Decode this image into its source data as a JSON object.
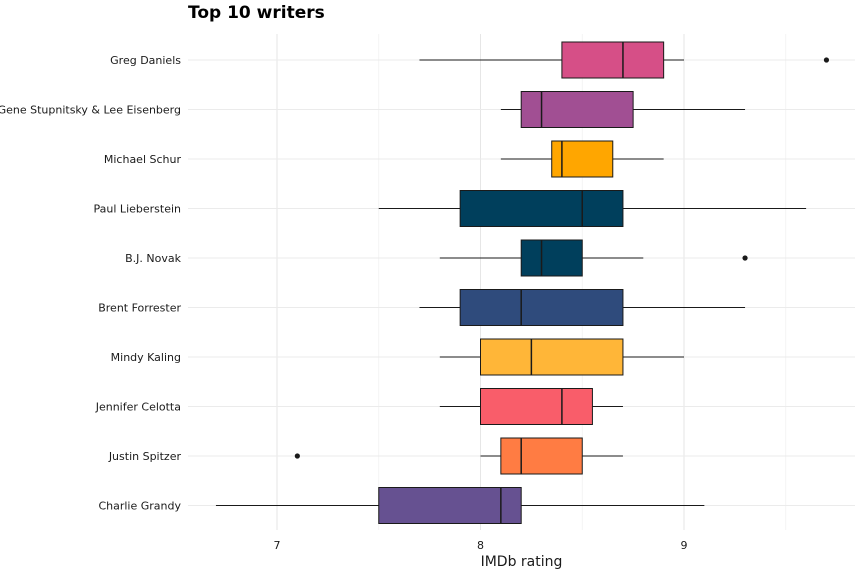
{
  "chart_data": {
    "type": "boxplot",
    "title": "Top 10 writers",
    "xlabel": "IMDb rating",
    "ylabel": "",
    "xlim": [
      6.55,
      9.85
    ],
    "x_ticks": [
      "7",
      "8",
      "9"
    ],
    "x_tick_values": [
      7,
      8,
      9
    ],
    "orientation": "horizontal",
    "grid": true,
    "legend": "none",
    "categories": [
      "Greg Daniels",
      "Gene Stupnitsky & Lee Eisenberg",
      "Michael Schur",
      "Paul Lieberstein",
      "B.J. Novak",
      "Brent Forrester",
      "Mindy Kaling",
      "Jennifer Celotta",
      "Justin Spitzer",
      "Charlie Grandy"
    ],
    "boxes": [
      {
        "label": "Greg Daniels",
        "whisker_low": 7.7,
        "q1": 8.4,
        "median": 8.7,
        "q3": 8.9,
        "whisker_high": 9.0,
        "outliers": [
          9.7
        ],
        "color": "#D64F87"
      },
      {
        "label": "Gene Stupnitsky & Lee Eisenberg",
        "whisker_low": 8.1,
        "q1": 8.2,
        "median": 8.3,
        "q3": 8.75,
        "whisker_high": 9.3,
        "outliers": [],
        "color": "#A14F93"
      },
      {
        "label": "Michael Schur",
        "whisker_low": 8.1,
        "q1": 8.35,
        "median": 8.4,
        "q3": 8.65,
        "whisker_high": 8.9,
        "outliers": [],
        "color": "#FFA600"
      },
      {
        "label": "Paul Lieberstein",
        "whisker_low": 7.5,
        "q1": 7.9,
        "median": 8.5,
        "q3": 8.7,
        "whisker_high": 9.6,
        "outliers": [],
        "color": "#003F5C"
      },
      {
        "label": "B.J. Novak",
        "whisker_low": 7.8,
        "q1": 8.2,
        "median": 8.3,
        "q3": 8.5,
        "whisker_high": 8.8,
        "outliers": [
          9.3
        ],
        "color": "#003F5C"
      },
      {
        "label": "Brent Forrester",
        "whisker_low": 7.7,
        "q1": 7.9,
        "median": 8.2,
        "q3": 8.7,
        "whisker_high": 9.3,
        "outliers": [],
        "color": "#2F4B7C"
      },
      {
        "label": "Mindy Kaling",
        "whisker_low": 7.8,
        "q1": 8.0,
        "median": 8.25,
        "q3": 8.7,
        "whisker_high": 9.0,
        "outliers": [],
        "color": "#FFB638"
      },
      {
        "label": "Jennifer Celotta",
        "whisker_low": 7.8,
        "q1": 8.0,
        "median": 8.4,
        "q3": 8.55,
        "whisker_high": 8.7,
        "outliers": [],
        "color": "#F95D6A"
      },
      {
        "label": "Justin Spitzer",
        "whisker_low": 8.0,
        "q1": 8.1,
        "median": 8.2,
        "q3": 8.5,
        "whisker_high": 8.7,
        "outliers": [
          7.1
        ],
        "color": "#FF7C43"
      },
      {
        "label": "Charlie Grandy",
        "whisker_low": 6.7,
        "q1": 7.5,
        "median": 8.1,
        "q3": 8.2,
        "whisker_high": 9.1,
        "outliers": [],
        "color": "#665191"
      }
    ]
  }
}
